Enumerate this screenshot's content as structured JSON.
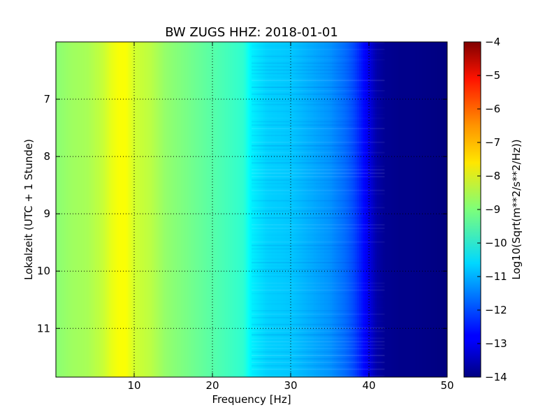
{
  "chart_data": {
    "type": "heatmap",
    "title": "BW ZUGS HHZ: 2018-01-01",
    "xlabel": "Frequency [Hz]",
    "ylabel": "Lokalzeit (UTC + 1 Stunde)",
    "xlim": [
      0,
      50
    ],
    "ylim": [
      6.0,
      11.85
    ],
    "y_inverted": true,
    "x_ticks": [
      10,
      20,
      30,
      40,
      50
    ],
    "y_ticks": [
      7,
      8,
      9,
      10,
      11
    ],
    "grid": true,
    "colormap": "jet",
    "colorbar": {
      "label": "Log10(Sqrt(m**2/s**2/Hz))",
      "min": -14,
      "max": -4,
      "ticks": [
        -4,
        -5,
        -6,
        -7,
        -8,
        -9,
        -10,
        -11,
        -12,
        -13,
        -14
      ]
    },
    "profile": {
      "frequency_hz": [
        0,
        2,
        4,
        6,
        7,
        8,
        9,
        10,
        12,
        14,
        16,
        18,
        20,
        22,
        24,
        25,
        27,
        30,
        32,
        35,
        37,
        38,
        39,
        40,
        41,
        42,
        44,
        46,
        48,
        50
      ],
      "level": [
        -8.9,
        -8.7,
        -8.6,
        -8.3,
        -8.0,
        -7.8,
        -7.8,
        -8.2,
        -8.4,
        -8.8,
        -9.0,
        -9.2,
        -9.4,
        -9.6,
        -9.8,
        -10.4,
        -10.7,
        -10.8,
        -11.0,
        -11.3,
        -11.7,
        -12.0,
        -12.5,
        -13.0,
        -13.6,
        -13.8,
        -13.9,
        -13.9,
        -13.95,
        -14.0
      ]
    }
  }
}
